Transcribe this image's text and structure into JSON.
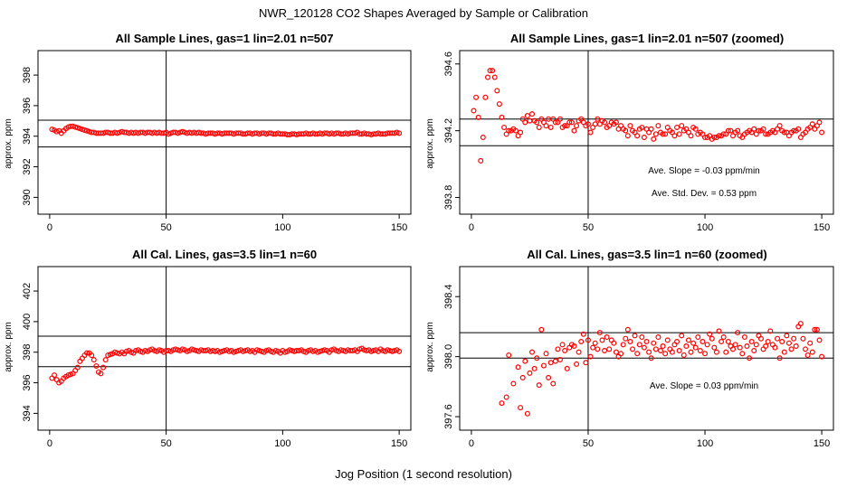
{
  "figure": {
    "main_title": "NWR_120128  CO2 Shapes Averaged by Sample or Calibration",
    "xlabel": "Jog Position (1 second resolution)"
  },
  "colors": {
    "points": "#ff0000",
    "axes": "#000000"
  },
  "chart_data": [
    {
      "type": "scatter",
      "title": "All Sample Lines, gas=1 lin=2.01 n=507",
      "ylabel": "approx. ppm",
      "xlim": [
        -5,
        155
      ],
      "ylim": [
        388.9,
        399.6
      ],
      "xticks": [
        0,
        50,
        100,
        150
      ],
      "yticks": [
        390,
        392,
        394,
        396,
        398
      ],
      "hlines": [
        395.05,
        393.3
      ],
      "vline": 50,
      "grid": false,
      "annotations": [],
      "series": [
        {
          "y": [
            394.45,
            394.4,
            394.3,
            394.35,
            394.2,
            394.35,
            394.5,
            394.6,
            394.65,
            394.65,
            394.6,
            394.55,
            394.5,
            394.45,
            394.4,
            394.35,
            394.3,
            394.25,
            394.25,
            394.2,
            394.2,
            394.2,
            394.2,
            394.25,
            394.25,
            394.2,
            394.2,
            394.25,
            394.2,
            394.25,
            394.3,
            394.25,
            394.25,
            394.2,
            394.25,
            394.2,
            394.25,
            394.2,
            394.25,
            394.25,
            394.2,
            394.25,
            394.25,
            394.2,
            394.25,
            394.2,
            394.25,
            394.2,
            394.2,
            394.25,
            394.15,
            394.2,
            394.25,
            394.25,
            394.2,
            394.25,
            394.3,
            394.25,
            394.2,
            394.25,
            394.2,
            394.25,
            394.2,
            394.25,
            394.2,
            394.2,
            394.15,
            394.2,
            394.2,
            394.2,
            394.15,
            394.2,
            394.2,
            394.15,
            394.2,
            394.2,
            394.2,
            394.2,
            394.15,
            394.2,
            394.2,
            394.2,
            394.15,
            394.15,
            394.2,
            394.2,
            394.15,
            394.2,
            394.2,
            394.15,
            394.2,
            394.2,
            394.15,
            394.2,
            394.2,
            394.15,
            394.15,
            394.2,
            394.15,
            394.15,
            394.15,
            394.1,
            394.1,
            394.15,
            394.15,
            394.1,
            394.15,
            394.15,
            394.15,
            394.2,
            394.15,
            394.15,
            394.2,
            394.15,
            394.15,
            394.2,
            394.15,
            394.2,
            394.2,
            394.15,
            394.2,
            394.15,
            394.2,
            394.2,
            394.15,
            394.15,
            394.2,
            394.15,
            394.2,
            394.2,
            394.2,
            394.25,
            394.15,
            394.15,
            394.2,
            394.15,
            394.15,
            394.1,
            394.15,
            394.15,
            394.2,
            394.15,
            394.15,
            394.15,
            394.2,
            394.2,
            394.2,
            394.2,
            394.25,
            394.2
          ]
        }
      ]
    },
    {
      "type": "scatter",
      "title": "All Sample Lines, gas=1 lin=2.01 n=507 (zoomed)",
      "ylabel": "approx. ppm",
      "xlim": [
        -5,
        155
      ],
      "ylim": [
        393.7,
        394.68
      ],
      "xticks": [
        0,
        50,
        100,
        150
      ],
      "yticks": [
        393.8,
        394.2,
        394.6
      ],
      "hlines": [
        394.27,
        394.11
      ],
      "vline": 50,
      "grid": false,
      "annotations": [
        {
          "text": "Ave. Slope =  -0.03  ppm/min"
        },
        {
          "text": "Ave. Std. Dev. =  0.53  ppm"
        }
      ],
      "series": [
        {
          "y": [
            394.32,
            394.4,
            394.28,
            394.02,
            394.16,
            394.4,
            394.52,
            394.56,
            394.56,
            394.52,
            394.44,
            394.36,
            394.28,
            394.22,
            394.18,
            394.2,
            394.2,
            394.21,
            394.2,
            394.17,
            394.19,
            394.27,
            394.25,
            394.29,
            394.26,
            394.3,
            394.26,
            394.25,
            394.22,
            394.27,
            394.25,
            394.23,
            394.27,
            394.22,
            394.27,
            394.25,
            394.25,
            394.27,
            394.22,
            394.23,
            394.23,
            394.25,
            394.25,
            394.2,
            394.23,
            394.26,
            394.27,
            394.25,
            394.23,
            394.24,
            394.19,
            394.22,
            394.24,
            394.27,
            394.24,
            394.26,
            394.25,
            394.22,
            394.23,
            394.25,
            394.24,
            394.25,
            394.21,
            394.23,
            394.21,
            394.2,
            394.17,
            394.23,
            394.2,
            394.19,
            394.17,
            394.21,
            394.22,
            394.16,
            394.21,
            394.19,
            394.21,
            394.15,
            394.18,
            394.23,
            394.19,
            394.18,
            394.18,
            394.22,
            394.2,
            394.19,
            394.17,
            394.22,
            394.18,
            394.23,
            394.2,
            394.21,
            394.19,
            394.17,
            394.22,
            394.21,
            394.18,
            394.19,
            394.18,
            394.16,
            394.16,
            394.17,
            394.15,
            394.16,
            394.16,
            394.17,
            394.17,
            394.18,
            394.18,
            394.2,
            394.2,
            394.17,
            394.19,
            394.2,
            394.17,
            394.16,
            394.18,
            394.19,
            394.2,
            394.19,
            394.21,
            394.18,
            394.2,
            394.2,
            394.21,
            394.18,
            394.18,
            394.19,
            394.2,
            394.19,
            394.21,
            394.23,
            394.2,
            394.19,
            394.19,
            394.17,
            394.19,
            394.2,
            394.2,
            394.21,
            394.16,
            394.18,
            394.19,
            394.21,
            394.22,
            394.24,
            394.21,
            394.23,
            394.25,
            394.19
          ]
        }
      ]
    },
    {
      "type": "scatter",
      "title": "All Cal. Lines, gas=3.5 lin=1 n=60",
      "ylabel": "approx. ppm",
      "xlim": [
        -5,
        155
      ],
      "ylim": [
        392.9,
        403.6
      ],
      "xticks": [
        0,
        50,
        100,
        150
      ],
      "yticks": [
        394,
        396,
        398,
        400,
        402
      ],
      "hlines": [
        399.05,
        397.05
      ],
      "vline": 50,
      "grid": false,
      "annotations": [],
      "series": [
        {
          "y": [
            396.3,
            396.5,
            396.2,
            396.0,
            396.1,
            396.3,
            396.4,
            396.5,
            396.55,
            396.6,
            396.8,
            397.0,
            397.4,
            397.6,
            397.8,
            397.95,
            397.95,
            397.8,
            397.5,
            397.1,
            396.7,
            396.6,
            397.0,
            397.5,
            397.8,
            397.85,
            397.9,
            398.0,
            397.95,
            397.9,
            398.0,
            397.9,
            398.05,
            398.1,
            398.0,
            397.95,
            398.1,
            398.15,
            398.05,
            398.0,
            398.1,
            398.05,
            398.15,
            398.2,
            398.1,
            398.05,
            398.15,
            398.1,
            398.0,
            398.1,
            398.1,
            398.05,
            398.15,
            398.2,
            398.15,
            398.1,
            398.2,
            398.15,
            398.05,
            398.1,
            398.2,
            398.15,
            398.1,
            398.05,
            398.15,
            398.1,
            398.1,
            398.15,
            398.05,
            398.1,
            398.05,
            398.1,
            398.0,
            398.05,
            398.1,
            398.15,
            398.05,
            398.1,
            398.0,
            398.05,
            398.1,
            398.15,
            398.05,
            398.1,
            398.15,
            398.05,
            398.1,
            398.0,
            398.15,
            398.1,
            398.05,
            398.0,
            398.1,
            398.15,
            398.05,
            398.0,
            398.1,
            398.05,
            397.95,
            398.1,
            398.0,
            398.05,
            398.15,
            398.1,
            398.05,
            398.1,
            398.1,
            398.15,
            398.05,
            398.0,
            398.1,
            398.15,
            398.05,
            398.1,
            398.0,
            398.05,
            398.1,
            398.15,
            398.1,
            398.0,
            398.15,
            398.2,
            398.1,
            398.05,
            398.15,
            398.1,
            398.05,
            398.15,
            398.1,
            398.1,
            398.15,
            398.05,
            398.2,
            398.25,
            398.15,
            398.1,
            398.15,
            398.05,
            398.1,
            398.15,
            398.05,
            398.2,
            398.1,
            398.05,
            398.15,
            398.1,
            398.05,
            398.1,
            398.15,
            398.05
          ]
        }
      ]
    },
    {
      "type": "scatter",
      "title": "All Cal. Lines, gas=3.5 lin=1 n=60 (zoomed)",
      "ylabel": "approx. ppm",
      "xlim": [
        -5,
        155
      ],
      "ylim": [
        397.51,
        398.6
      ],
      "xticks": [
        0,
        50,
        100,
        150
      ],
      "yticks": [
        397.6,
        398.0,
        398.4
      ],
      "hlines": [
        398.16,
        397.99
      ],
      "vline": 50,
      "grid": false,
      "annotations": [
        {
          "text": "Ave. Slope =  0.03  ppm/min"
        }
      ],
      "series": [
        {
          "x": [
            13,
            15,
            16,
            18,
            20,
            21,
            22,
            23,
            24,
            25,
            26,
            27,
            28,
            29,
            30,
            31,
            32,
            33,
            34,
            35,
            36,
            37,
            38,
            39,
            40,
            41,
            42,
            43,
            44,
            45,
            46,
            47,
            48,
            49,
            50,
            51,
            52,
            53,
            54,
            55,
            56,
            57,
            58,
            59,
            60,
            61,
            62,
            63,
            64,
            65,
            66,
            67,
            68,
            69,
            70,
            71,
            72,
            73,
            74,
            75,
            76,
            77,
            78,
            79,
            80,
            81,
            82,
            83,
            84,
            85,
            86,
            87,
            88,
            89,
            90,
            91,
            92,
            93,
            94,
            95,
            96,
            97,
            98,
            99,
            100,
            101,
            102,
            103,
            104,
            105,
            106,
            107,
            108,
            109,
            110,
            111,
            112,
            113,
            114,
            115,
            116,
            117,
            118,
            119,
            120,
            121,
            122,
            123,
            124,
            125,
            126,
            127,
            128,
            129,
            130,
            131,
            132,
            133,
            134,
            135,
            136,
            137,
            138,
            139,
            140,
            141,
            142,
            143,
            144,
            145,
            146,
            147,
            148,
            149,
            150
          ],
          "y": [
            397.69,
            397.73,
            398.01,
            397.82,
            397.93,
            397.66,
            397.86,
            397.97,
            397.62,
            397.89,
            398.03,
            397.92,
            397.99,
            397.81,
            398.18,
            397.94,
            398.02,
            397.86,
            397.96,
            397.82,
            397.97,
            398.05,
            397.98,
            398.08,
            398.04,
            397.92,
            398.06,
            398.08,
            398.07,
            397.95,
            398.03,
            398.1,
            398.15,
            397.96,
            398.11,
            398.0,
            398.06,
            398.09,
            398.05,
            398.16,
            398.11,
            398.04,
            398.13,
            398.05,
            398.11,
            398.09,
            398.03,
            398.0,
            398.02,
            398.08,
            398.12,
            398.18,
            398.1,
            398.05,
            398.14,
            398.02,
            398.08,
            398.13,
            398.06,
            398.1,
            398.03,
            397.99,
            398.09,
            398.05,
            398.13,
            398.04,
            398.07,
            398.02,
            398.11,
            398.05,
            398.03,
            398.08,
            398.1,
            398.04,
            398.14,
            398.01,
            398.07,
            398.11,
            398.03,
            398.09,
            398.06,
            398.13,
            398.04,
            398.1,
            398.02,
            398.08,
            398.15,
            398.12,
            398.06,
            398.03,
            398.17,
            398.1,
            398.13,
            398.03,
            398.1,
            398.07,
            398.05,
            398.08,
            398.16,
            398.06,
            398.02,
            398.13,
            398.07,
            397.99,
            398.1,
            398.04,
            398.08,
            398.14,
            398.12,
            398.05,
            398.07,
            398.1,
            398.17,
            398.08,
            398.06,
            398.12,
            397.99,
            398.1,
            398.03,
            398.14,
            398.09,
            398.05,
            398.12,
            398.07,
            398.2,
            398.22,
            398.12,
            398.05,
            398.01,
            398.09,
            398.03,
            398.18,
            398.18,
            398.11,
            398.0
          ]
        }
      ]
    }
  ]
}
